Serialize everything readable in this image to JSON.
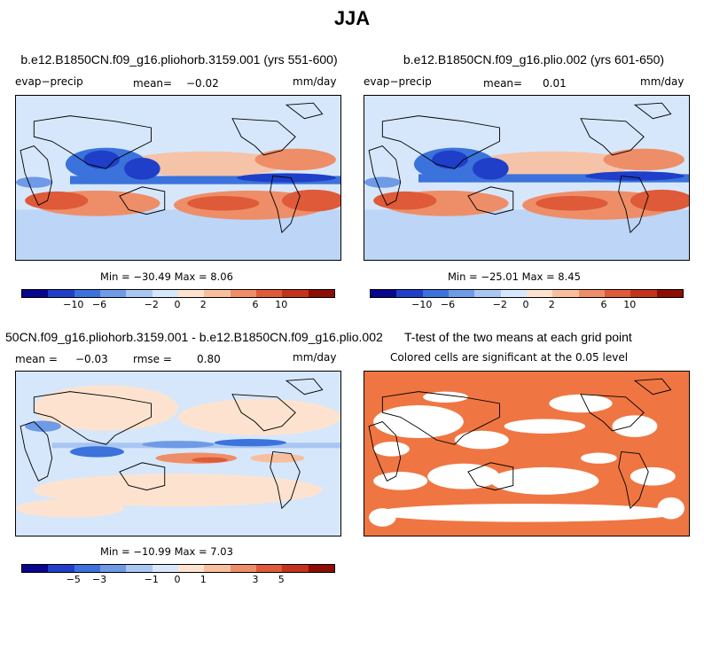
{
  "title": "JJA",
  "colors": {
    "diverging_12": [
      "#08068c",
      "#1f3fc8",
      "#3b72dc",
      "#6e9ae6",
      "#a9c6f2",
      "#d6e7fb",
      "#fde3cf",
      "#f8bf9e",
      "#ee8e68",
      "#df5a38",
      "#c3331b",
      "#8c0d04"
    ],
    "significance": "#ef7642",
    "land_outline": "#000000"
  },
  "panels": [
    {
      "id": "case1",
      "title": "b.e12.B1850CN.f09_g16.pliohorb.3159.001 (yrs 551-600)",
      "left_label": "evap−precip",
      "stat_label": "mean=",
      "stat_value": "−0.02",
      "units": "mm/day",
      "min_max": "Min = −30.49 Max =    8.06",
      "colorbar_ticks": [
        "−10",
        "−6",
        "−2",
        "0",
        "2",
        "6",
        "10"
      ]
    },
    {
      "id": "case2",
      "title": "b.e12.B1850CN.f09_g16.plio.002 (yrs 601-650)",
      "left_label": "evap−precip",
      "stat_label": "mean=",
      "stat_value": "0.01",
      "units": "mm/day",
      "min_max": "Min = −25.01 Max =    8.45",
      "colorbar_ticks": [
        "−10",
        "−6",
        "−2",
        "0",
        "2",
        "6",
        "10"
      ]
    },
    {
      "id": "difference",
      "title": "50CN.f09_g16.pliohorb.3159.001 - b.e12.B1850CN.f09_g16.plio.002",
      "mean_label": "mean =",
      "mean_value": "−0.03",
      "rmse_label": "rmse =",
      "rmse_value": "0.80",
      "units": "mm/day",
      "min_max": "Min = −10.99 Max =    7.03",
      "colorbar_ticks": [
        "−5",
        "−3",
        "−1",
        "0",
        "1",
        "3",
        "5"
      ]
    },
    {
      "id": "ttest",
      "title": "T-test of the two means at each grid point",
      "subtitle": "Colored cells are significant at the 0.05 level"
    }
  ]
}
